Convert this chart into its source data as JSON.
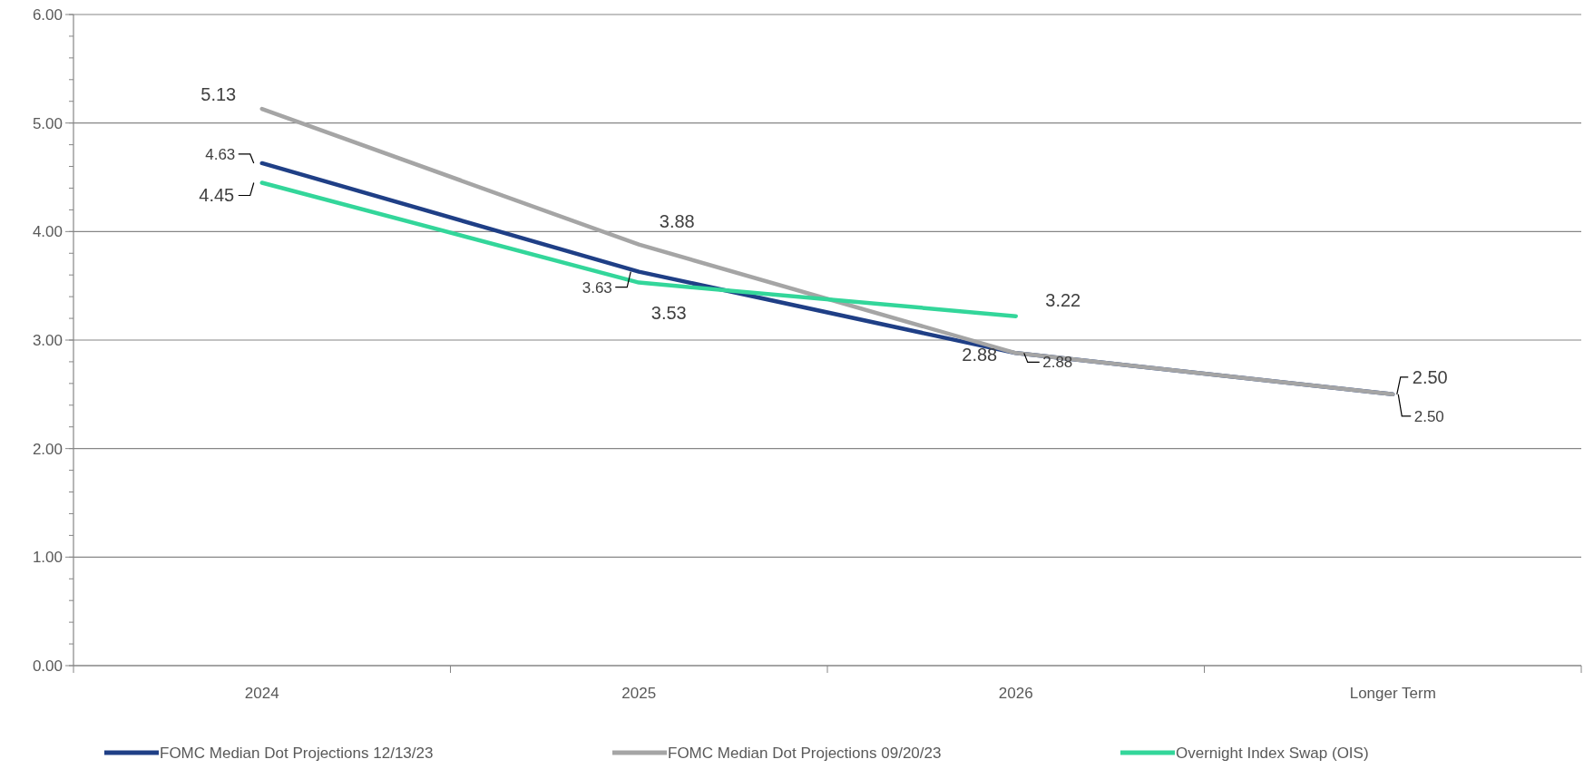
{
  "chart_data": {
    "type": "line",
    "categories": [
      "2024",
      "2025",
      "2026",
      "Longer Term"
    ],
    "series": [
      {
        "name": "FOMC Median Dot Projections 12/13/23",
        "color": "#1f3f86",
        "values": [
          4.63,
          3.63,
          2.88,
          2.5
        ],
        "value_labels": [
          "4.63",
          "3.63",
          "2.88",
          "2.50"
        ]
      },
      {
        "name": "FOMC Median Dot Projections 09/20/23",
        "color": "#a5a5a5",
        "values": [
          5.13,
          3.88,
          2.88,
          2.5
        ],
        "value_labels": [
          "5.13",
          "3.88",
          "2.88",
          "2.50"
        ]
      },
      {
        "name": "Overnight Index Swap (OIS)",
        "color": "#33d69a",
        "values": [
          4.45,
          3.53,
          3.22,
          null
        ],
        "value_labels": [
          "4.45",
          "3.53",
          "3.22",
          null
        ]
      }
    ],
    "ylim": [
      0,
      6
    ],
    "yticks": [
      {
        "value": 0,
        "label": "0.00"
      },
      {
        "value": 1,
        "label": "1.00"
      },
      {
        "value": 2,
        "label": "2.00"
      },
      {
        "value": 3,
        "label": "3.00"
      },
      {
        "value": 4,
        "label": "4.00"
      },
      {
        "value": 5,
        "label": "5.00"
      },
      {
        "value": 6,
        "label": "6.00"
      }
    ],
    "grid": "y",
    "legend": "bottom",
    "marker": "none",
    "line_style": "solid"
  }
}
